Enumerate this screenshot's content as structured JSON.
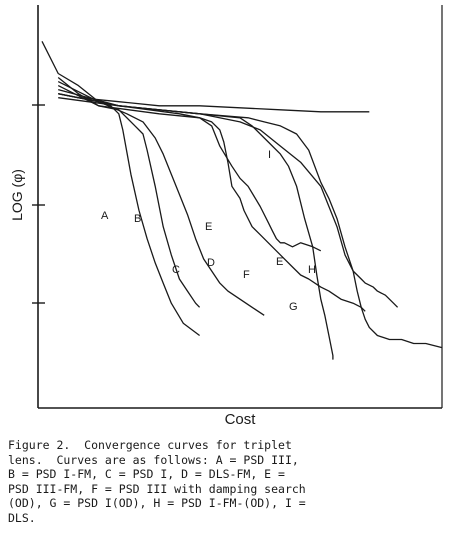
{
  "chart_data": {
    "type": "line",
    "title": "",
    "xlabel": "Cost",
    "ylabel": "LOG (φ)",
    "xlim": [
      0,
      100
    ],
    "ylim": [
      0,
      100
    ],
    "grid": false,
    "legend": "none",
    "series": [
      {
        "name": "A",
        "x": [
          1,
          5,
          10,
          15,
          18,
          20,
          21,
          23,
          25,
          27,
          29,
          31,
          33,
          36,
          40
        ],
        "y": [
          91,
          83,
          80,
          76,
          75,
          73,
          69,
          58,
          49,
          42,
          36,
          31,
          26,
          21,
          18
        ]
      },
      {
        "name": "B",
        "x": [
          5,
          10,
          15,
          20,
          24,
          26,
          27,
          29,
          31,
          33,
          35,
          37,
          39,
          40
        ],
        "y": [
          82,
          78,
          75,
          74,
          70,
          68,
          64,
          55,
          45,
          38,
          32,
          29,
          26,
          25
        ]
      },
      {
        "name": "C",
        "x": [
          5,
          15,
          22,
          26,
          29,
          31,
          33,
          35,
          37,
          39,
          41,
          43,
          45,
          47,
          50,
          53,
          56
        ],
        "y": [
          81,
          76,
          73,
          71,
          67,
          63,
          58,
          53,
          48,
          42,
          37,
          34,
          31,
          29,
          27,
          25,
          23
        ]
      },
      {
        "name": "D",
        "x": [
          5,
          15,
          30,
          40,
          43,
          45,
          46,
          47,
          48,
          50,
          51,
          53,
          55,
          57,
          60,
          63,
          65,
          67,
          70,
          72,
          75,
          78,
          80,
          81
        ],
        "y": [
          80,
          75,
          73,
          72,
          71,
          69,
          66,
          61,
          55,
          52,
          49,
          45,
          43,
          41,
          38,
          35,
          33,
          32,
          30,
          29,
          27,
          26,
          25,
          24
        ]
      },
      {
        "name": "E",
        "x": [
          5,
          20,
          35,
          40,
          43,
          45,
          48,
          50,
          52,
          55,
          57,
          58,
          59,
          60,
          61,
          63,
          65,
          68,
          70
        ],
        "y": [
          78,
          75,
          73,
          72,
          70,
          65,
          60,
          57,
          55,
          50,
          46,
          44,
          42,
          41,
          41,
          40,
          41,
          40,
          39
        ]
      },
      {
        "name": "F",
        "x": [
          5,
          20,
          40,
          50,
          53,
          57,
          60,
          62,
          64,
          66,
          68,
          69,
          70,
          71,
          72,
          73,
          73
        ],
        "y": [
          77,
          75,
          73,
          72,
          70,
          66,
          63,
          60,
          55,
          47,
          40,
          33,
          27,
          23,
          18,
          13,
          12
        ]
      },
      {
        "name": "G",
        "x": [
          5,
          20,
          40,
          50,
          55,
          60,
          65,
          70,
          72,
          74,
          76,
          78,
          80,
          81,
          83,
          84,
          86,
          88,
          89
        ],
        "y": [
          78,
          75,
          73,
          71,
          69,
          65,
          61,
          55,
          50,
          45,
          38,
          34,
          32,
          31,
          30,
          29,
          28,
          26,
          25
        ]
      },
      {
        "name": "H",
        "x": [
          5,
          20,
          40,
          52,
          56,
          60,
          64,
          67,
          70,
          72,
          74,
          76,
          78,
          79,
          80,
          81,
          82,
          84,
          87,
          90,
          93,
          96,
          100
        ],
        "y": [
          79,
          75,
          73,
          72,
          71,
          70,
          68,
          64,
          56,
          52,
          47,
          40,
          34,
          29,
          25,
          22,
          20,
          18,
          17,
          17,
          16,
          16,
          15
        ]
      },
      {
        "name": "I",
        "x": [
          5,
          10,
          20,
          30,
          40,
          50,
          60,
          70,
          74,
          78,
          82
        ],
        "y": [
          78,
          77,
          76,
          75,
          75,
          74.5,
          74,
          73.5,
          73.5,
          73.5,
          73.5
        ]
      }
    ],
    "annotations": [
      "A",
      "B",
      "C",
      "D",
      "E",
      "E",
      "F",
      "G",
      "H",
      "I"
    ]
  },
  "caption": {
    "line1": "Figure 2.  Convergence curves for triplet",
    "line2": "lens.  Curves are as follows: A = PSD III,",
    "line3": "B = PSD I-FM, C = PSD I, D = DLS-FM, E =",
    "line4": "PSD III-FM, F = PSD III with damping search",
    "line5": "(OD), G = PSD I(OD), H = PSD I-FM-(OD), I =",
    "line6": "DLS."
  }
}
